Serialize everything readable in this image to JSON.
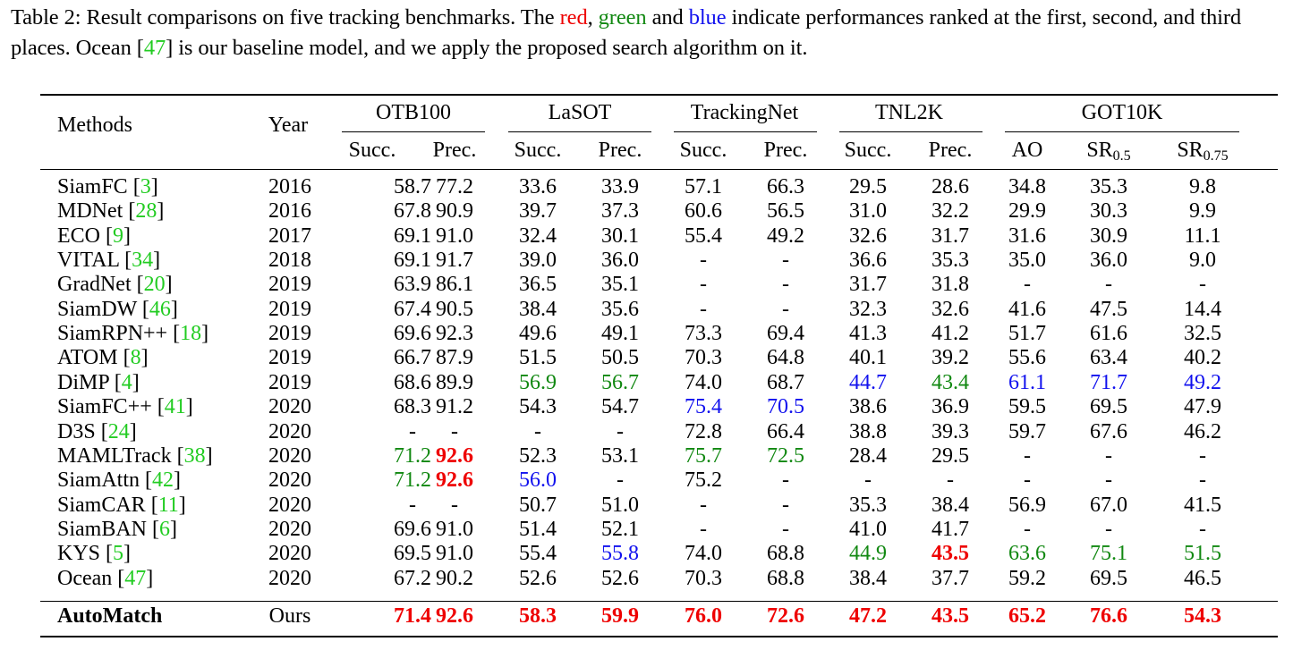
{
  "caption": {
    "prefix": "Table 2: Result comparisons on five tracking benchmarks. The ",
    "red_word": "red",
    "sep1": ", ",
    "green_word": "green",
    "sep2": " and ",
    "blue_word": "blue",
    "middle": " indicate performances ranked at the first, second, and third places. Ocean [",
    "ref": "47",
    "suffix": "] is our baseline model, and we apply the proposed search algorithm on it."
  },
  "header": {
    "methods": "Methods",
    "year": "Year",
    "groups": [
      "OTB100",
      "LaSOT",
      "TrackingNet",
      "TNL2K",
      "GOT10K"
    ],
    "subcols": [
      "Succ.",
      "Prec.",
      "Succ.",
      "Prec.",
      "Succ.",
      "Prec.",
      "Succ.",
      "Prec.",
      "AO"
    ],
    "sr_base": "SR",
    "sr_sub": [
      "0.5",
      "0.75"
    ]
  },
  "colors": {
    "red": "#ee0000",
    "green": "#118811",
    "blue": "#1111ee",
    "cite": "#22cc22"
  },
  "rows": [
    {
      "name": "SiamFC",
      "ref": "3",
      "year": "2016",
      "values": [
        "58.7",
        "77.2",
        "33.6",
        "33.9",
        "57.1",
        "66.3",
        "29.5",
        "28.6",
        "34.8",
        "35.3",
        "9.8"
      ],
      "ranks": [
        "",
        "",
        "",
        "",
        "",
        "",
        "",
        "",
        "",
        "",
        ""
      ]
    },
    {
      "name": "MDNet",
      "ref": "28",
      "year": "2016",
      "values": [
        "67.8",
        "90.9",
        "39.7",
        "37.3",
        "60.6",
        "56.5",
        "31.0",
        "32.2",
        "29.9",
        "30.3",
        "9.9"
      ],
      "ranks": [
        "",
        "",
        "",
        "",
        "",
        "",
        "",
        "",
        "",
        "",
        ""
      ]
    },
    {
      "name": "ECO",
      "ref": "9",
      "year": "2017",
      "values": [
        "69.1",
        "91.0",
        "32.4",
        "30.1",
        "55.4",
        "49.2",
        "32.6",
        "31.7",
        "31.6",
        "30.9",
        "11.1"
      ],
      "ranks": [
        "",
        "",
        "",
        "",
        "",
        "",
        "",
        "",
        "",
        "",
        ""
      ]
    },
    {
      "name": "VITAL",
      "ref": "34",
      "year": "2018",
      "values": [
        "69.1",
        "91.7",
        "39.0",
        "36.0",
        "-",
        "-",
        "36.6",
        "35.3",
        "35.0",
        "36.0",
        "9.0"
      ],
      "ranks": [
        "",
        "",
        "",
        "",
        "",
        "",
        "",
        "",
        "",
        "",
        ""
      ]
    },
    {
      "name": "GradNet",
      "ref": "20",
      "year": "2019",
      "values": [
        "63.9",
        "86.1",
        "36.5",
        "35.1",
        "-",
        "-",
        "31.7",
        "31.8",
        "-",
        "-",
        "-"
      ],
      "ranks": [
        "",
        "",
        "",
        "",
        "",
        "",
        "",
        "",
        "",
        "",
        ""
      ]
    },
    {
      "name": "SiamDW",
      "ref": "46",
      "year": "2019",
      "values": [
        "67.4",
        "90.5",
        "38.4",
        "35.6",
        "-",
        "-",
        "32.3",
        "32.6",
        "41.6",
        "47.5",
        "14.4"
      ],
      "ranks": [
        "",
        "",
        "",
        "",
        "",
        "",
        "",
        "",
        "",
        "",
        ""
      ]
    },
    {
      "name": "SiamRPN++",
      "ref": "18",
      "year": "2019",
      "values": [
        "69.6",
        "92.3",
        "49.6",
        "49.1",
        "73.3",
        "69.4",
        "41.3",
        "41.2",
        "51.7",
        "61.6",
        "32.5"
      ],
      "ranks": [
        "",
        "",
        "",
        "",
        "",
        "",
        "",
        "",
        "",
        "",
        ""
      ]
    },
    {
      "name": "ATOM",
      "ref": "8",
      "year": "2019",
      "values": [
        "66.7",
        "87.9",
        "51.5",
        "50.5",
        "70.3",
        "64.8",
        "40.1",
        "39.2",
        "55.6",
        "63.4",
        "40.2"
      ],
      "ranks": [
        "",
        "",
        "",
        "",
        "",
        "",
        "",
        "",
        "",
        "",
        ""
      ]
    },
    {
      "name": "DiMP",
      "ref": "4",
      "year": "2019",
      "values": [
        "68.6",
        "89.9",
        "56.9",
        "56.7",
        "74.0",
        "68.7",
        "44.7",
        "43.4",
        "61.1",
        "71.7",
        "49.2"
      ],
      "ranks": [
        "",
        "",
        "green",
        "green",
        "",
        "",
        "blue",
        "green",
        "blue",
        "blue",
        "blue"
      ]
    },
    {
      "name": "SiamFC++",
      "ref": "41",
      "year": "2020",
      "values": [
        "68.3",
        "91.2",
        "54.3",
        "54.7",
        "75.4",
        "70.5",
        "38.6",
        "36.9",
        "59.5",
        "69.5",
        "47.9"
      ],
      "ranks": [
        "",
        "",
        "",
        "",
        "blue",
        "blue",
        "",
        "",
        "",
        "",
        ""
      ]
    },
    {
      "name": "D3S",
      "ref": "24",
      "year": "2020",
      "values": [
        "-",
        "-",
        "-",
        "-",
        "72.8",
        "66.4",
        "38.8",
        "39.3",
        "59.7",
        "67.6",
        "46.2"
      ],
      "ranks": [
        "",
        "",
        "",
        "",
        "",
        "",
        "",
        "",
        "",
        "",
        ""
      ]
    },
    {
      "name": "MAMLTrack",
      "ref": "38",
      "year": "2020",
      "values": [
        "71.2",
        "92.6",
        "52.3",
        "53.1",
        "75.7",
        "72.5",
        "28.4",
        "29.5",
        "-",
        "-",
        "-"
      ],
      "ranks": [
        "green",
        "red",
        "",
        "",
        "green",
        "green",
        "",
        "",
        "",
        "",
        ""
      ]
    },
    {
      "name": "SiamAttn",
      "ref": "42",
      "year": "2020",
      "values": [
        "71.2",
        "92.6",
        "56.0",
        "-",
        "75.2",
        "-",
        "-",
        "-",
        "-",
        "-",
        "-"
      ],
      "ranks": [
        "green",
        "red",
        "blue",
        "",
        "",
        "",
        "",
        "",
        "",
        "",
        ""
      ]
    },
    {
      "name": "SiamCAR",
      "ref": "11",
      "year": "2020",
      "values": [
        "-",
        "-",
        "50.7",
        "51.0",
        "-",
        "-",
        "35.3",
        "38.4",
        "56.9",
        "67.0",
        "41.5"
      ],
      "ranks": [
        "",
        "",
        "",
        "",
        "",
        "",
        "",
        "",
        "",
        "",
        ""
      ]
    },
    {
      "name": "SiamBAN",
      "ref": "6",
      "year": "2020",
      "values": [
        "69.6",
        "91.0",
        "51.4",
        "52.1",
        "-",
        "-",
        "41.0",
        "41.7",
        "-",
        "-",
        "-"
      ],
      "ranks": [
        "",
        "",
        "",
        "",
        "",
        "",
        "",
        "",
        "",
        "",
        ""
      ]
    },
    {
      "name": "KYS",
      "ref": "5",
      "year": "2020",
      "values": [
        "69.5",
        "91.0",
        "55.4",
        "55.8",
        "74.0",
        "68.8",
        "44.9",
        "43.5",
        "63.6",
        "75.1",
        "51.5"
      ],
      "ranks": [
        "",
        "",
        "",
        "blue",
        "",
        "",
        "green",
        "red",
        "green",
        "green",
        "green"
      ]
    },
    {
      "name": "Ocean",
      "ref": "47",
      "year": "2020",
      "values": [
        "67.2",
        "90.2",
        "52.6",
        "52.6",
        "70.3",
        "68.8",
        "38.4",
        "37.7",
        "59.2",
        "69.5",
        "46.5"
      ],
      "ranks": [
        "",
        "",
        "",
        "",
        "",
        "",
        "",
        "",
        "",
        "",
        ""
      ]
    }
  ],
  "final_row": {
    "name": "AutoMatch",
    "year": "Ours",
    "values": [
      "71.4",
      "92.6",
      "58.3",
      "59.9",
      "76.0",
      "72.6",
      "47.2",
      "43.5",
      "65.2",
      "76.6",
      "54.3"
    ],
    "ranks": [
      "red",
      "red",
      "red",
      "red",
      "red",
      "red",
      "red",
      "red",
      "red",
      "red",
      "red"
    ]
  }
}
